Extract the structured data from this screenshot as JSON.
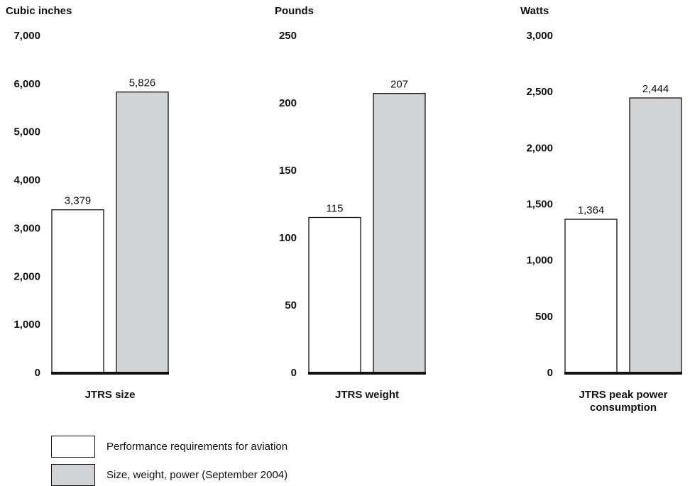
{
  "chart_data": [
    {
      "type": "bar",
      "ylabel": "Cubic inches",
      "xlabel": "JTRS size",
      "xlabel_lines": [
        "JTRS size"
      ],
      "ylim": [
        0,
        7000
      ],
      "yticks": [
        0,
        1000,
        2000,
        3000,
        4000,
        5000,
        6000,
        7000
      ],
      "ytick_labels": [
        "0",
        "1,000",
        "2,000",
        "3,000",
        "4,000",
        "5,000",
        "6,000",
        "7,000"
      ],
      "series": [
        {
          "name": "Performance requirements for aviation",
          "values": [
            3379
          ],
          "labels": [
            "3,379"
          ]
        },
        {
          "name": "Size, weight, power (September 2004)",
          "values": [
            5826
          ],
          "labels": [
            "5,826"
          ]
        }
      ]
    },
    {
      "type": "bar",
      "ylabel": "Pounds",
      "xlabel": "JTRS weight",
      "xlabel_lines": [
        "JTRS weight"
      ],
      "ylim": [
        0,
        250
      ],
      "yticks": [
        0,
        50,
        100,
        150,
        200,
        250
      ],
      "ytick_labels": [
        "0",
        "50",
        "100",
        "150",
        "200",
        "250"
      ],
      "series": [
        {
          "name": "Performance requirements for aviation",
          "values": [
            115
          ],
          "labels": [
            "115"
          ]
        },
        {
          "name": "Size, weight, power (September 2004)",
          "values": [
            207
          ],
          "labels": [
            "207"
          ]
        }
      ]
    },
    {
      "type": "bar",
      "ylabel": "Watts",
      "xlabel": "JTRS peak power consumption",
      "xlabel_lines": [
        "JTRS peak power",
        "consumption"
      ],
      "ylim": [
        0,
        3000
      ],
      "yticks": [
        0,
        500,
        1000,
        1500,
        2000,
        2500,
        3000
      ],
      "ytick_labels": [
        "0",
        "500",
        "1,000",
        "1,500",
        "2,000",
        "2,500",
        "3,000"
      ],
      "series": [
        {
          "name": "Performance requirements for aviation",
          "values": [
            1364
          ],
          "labels": [
            "1,364"
          ]
        },
        {
          "name": "Size, weight, power (September 2004)",
          "values": [
            2444
          ],
          "labels": [
            "2,444"
          ]
        }
      ]
    }
  ],
  "legend": {
    "items": [
      {
        "label": "Performance requirements for aviation",
        "color": "#ffffff"
      },
      {
        "label": "Size, weight, power (September 2004)",
        "color": "#d2d3d5"
      }
    ],
    "placement": "bottom-left"
  },
  "colors": {
    "series": [
      "#ffffff",
      "#d2d3d5"
    ],
    "axis": "#111111"
  }
}
